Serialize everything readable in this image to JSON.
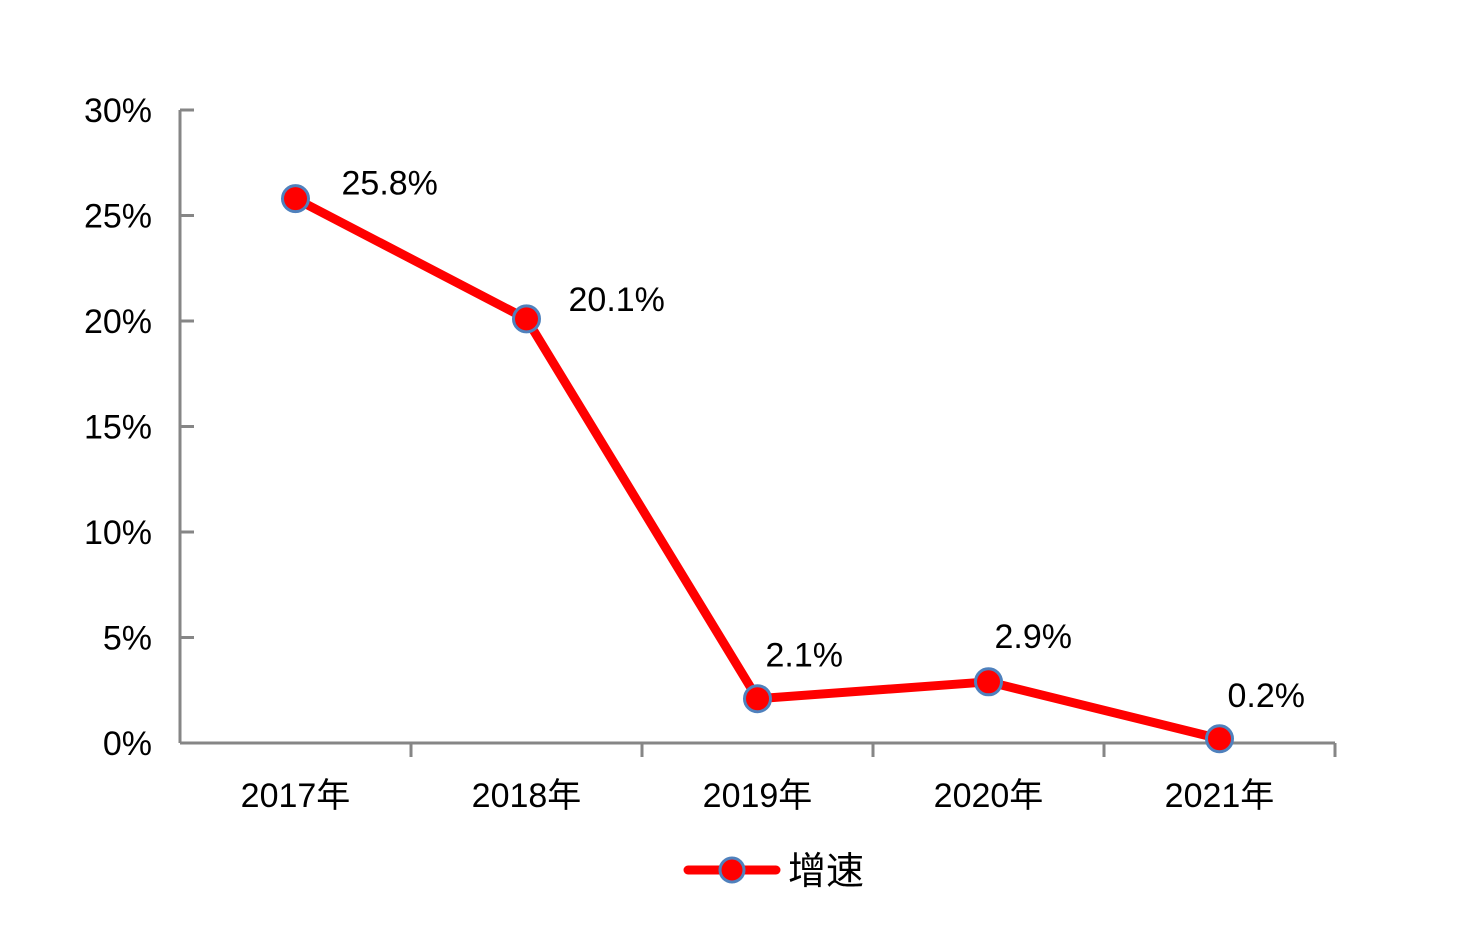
{
  "chart_data": {
    "type": "line",
    "categories": [
      "2017年",
      "2018年",
      "2019年",
      "2020年",
      "2021年"
    ],
    "series": [
      {
        "name": "增速",
        "values": [
          25.8,
          20.1,
          2.1,
          2.9,
          0.2
        ],
        "data_labels": [
          "25.8%",
          "20.1%",
          "2.1%",
          "2.9%",
          "0.2%"
        ],
        "line_color": "#ff0000",
        "marker_fill": "#ff0000",
        "marker_stroke": "#4f81bd"
      }
    ],
    "ylim": [
      0,
      30
    ],
    "y_ticks": [
      0,
      5,
      10,
      15,
      20,
      25,
      30
    ],
    "y_tick_labels": [
      "0%",
      "5%",
      "10%",
      "15%",
      "20%",
      "25%",
      "30%"
    ],
    "legend_position": "bottom",
    "grid": false,
    "axis_color": "#868686"
  }
}
